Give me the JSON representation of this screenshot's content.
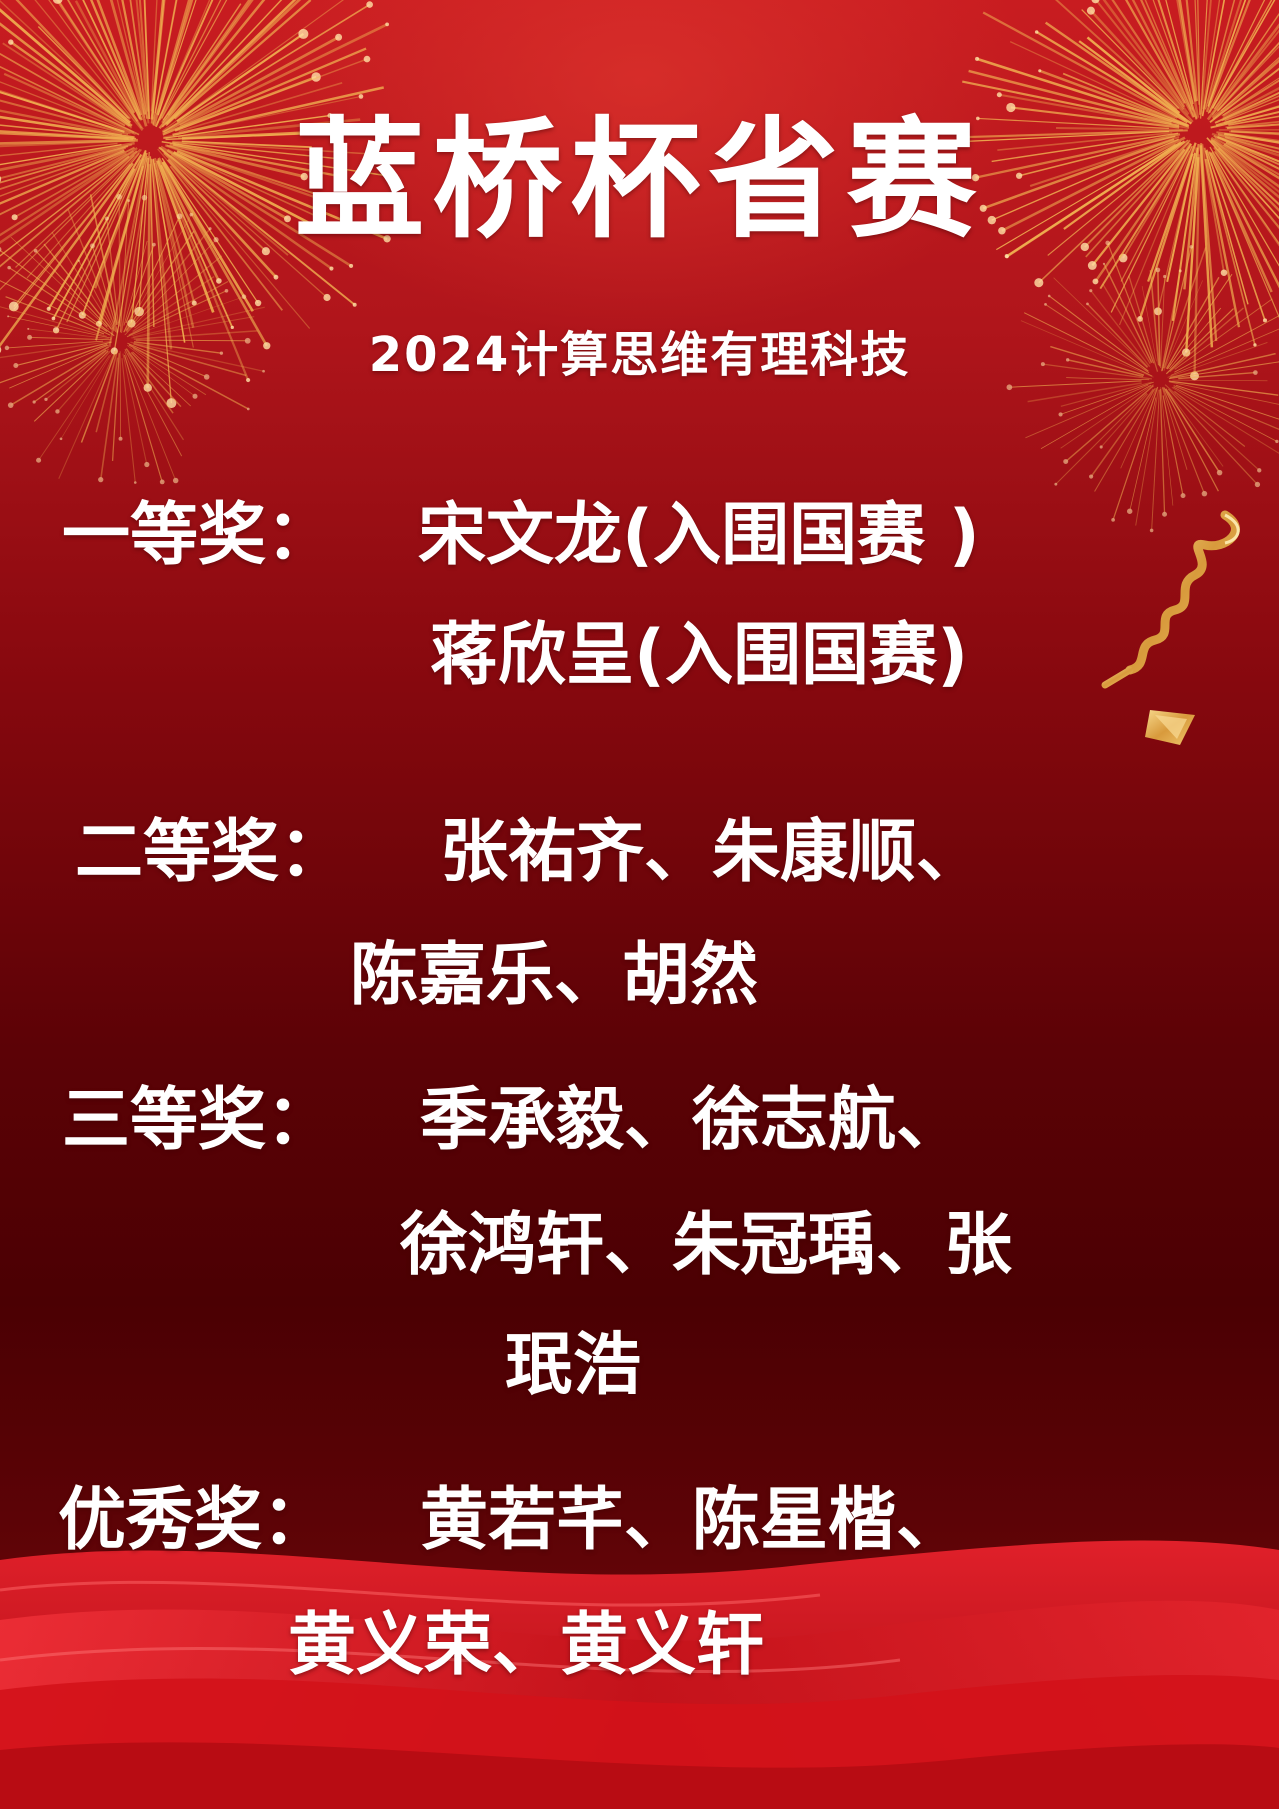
{
  "title": "蓝桥杯省赛",
  "subtitle": "2024计算思维有理科技",
  "awards": {
    "first": {
      "label": "一等奖：",
      "line1": "宋文龙(入围国赛 )",
      "line2": "蒋欣呈(入围国赛)"
    },
    "second": {
      "label": "二等奖：",
      "line1": "张祐齐、朱康顺、",
      "line2": "陈嘉乐、胡然"
    },
    "third": {
      "label": "三等奖：",
      "line1": "季承毅、徐志航、",
      "line2": "徐鸿轩、朱冠瑀、张",
      "line3": "珉浩"
    },
    "excellence": {
      "label": "优秀奖：",
      "line1": "黄若芊、陈星楷、",
      "line2": "黄义荣、黄义轩"
    }
  },
  "colors": {
    "background_top": "#c81c20",
    "background_bottom": "#4b0003",
    "text": "#ffffff",
    "firework_gold": "#f2b552",
    "ribbon_gold": "#e6b45a",
    "wave_red": "#d3121a"
  },
  "decorations": [
    "fireworks-top-left",
    "fireworks-top-right",
    "gold-ribbon",
    "red-silk-waves"
  ]
}
